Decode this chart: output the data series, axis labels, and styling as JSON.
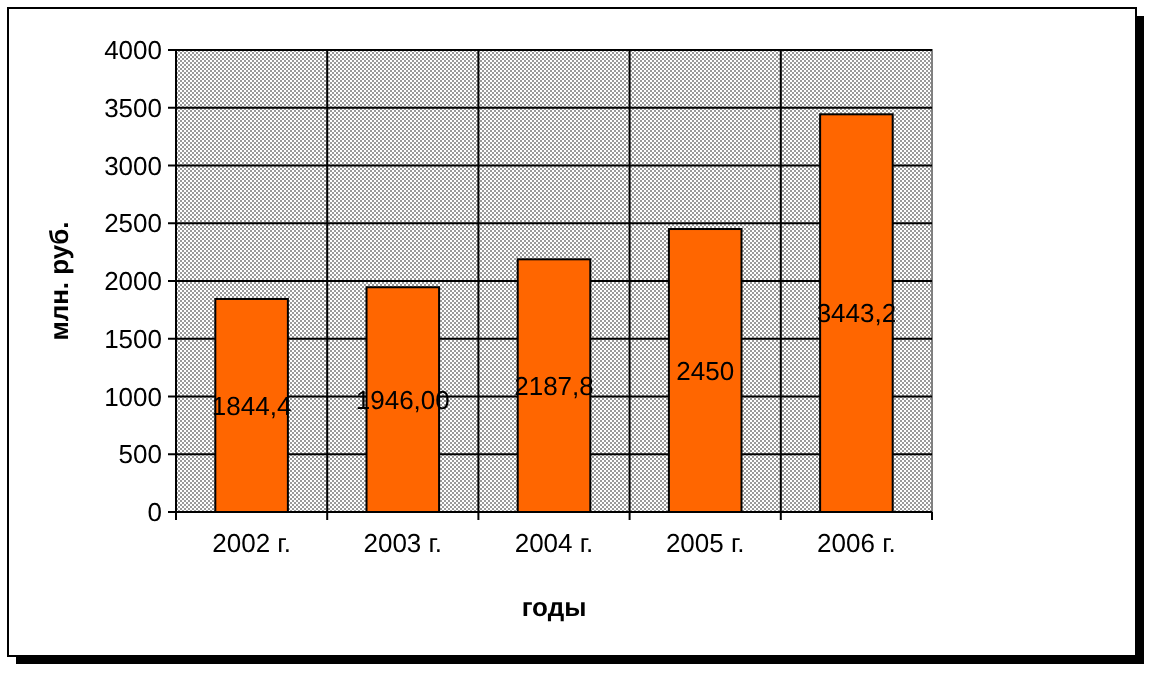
{
  "chart_data": {
    "type": "bar",
    "xlabel": "годы",
    "ylabel": "млн. руб.",
    "categories": [
      "2002 г.",
      "2003 г.",
      "2004 г.",
      "2005 г.",
      "2006 г."
    ],
    "values": [
      1844.4,
      1946.0,
      2187.8,
      2450,
      3443.2
    ],
    "value_labels": [
      "1844,4",
      "1946,00",
      "2187,8",
      "2450",
      "3443,2"
    ],
    "color": "#ff6600",
    "ylim": [
      0,
      4000
    ],
    "yticks": [
      0,
      500,
      1000,
      1500,
      2000,
      2500,
      3000,
      3500,
      4000
    ],
    "grid": true
  }
}
